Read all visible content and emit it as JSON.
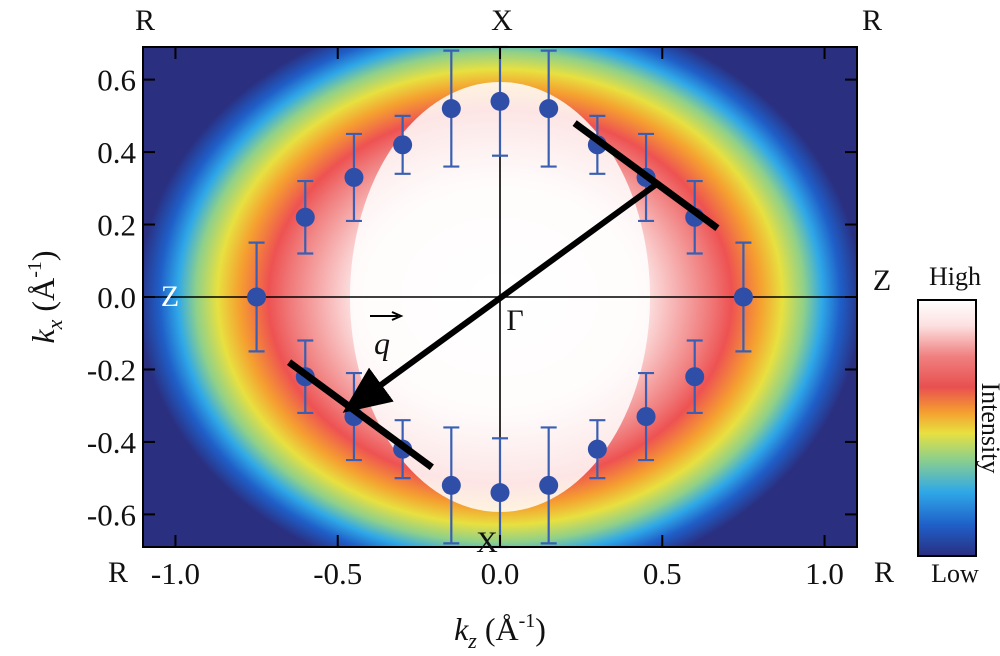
{
  "chart_data": {
    "type": "heatmap",
    "xlabel": {
      "main": "k",
      "sub": "z",
      "unit": " (Å",
      "sup": "-1",
      "close": ")"
    },
    "ylabel": {
      "main": "k",
      "sub": "x",
      "unit": " (Å",
      "sup": "-1",
      "close": ")"
    },
    "xlim": [
      -1.1,
      1.1
    ],
    "ylim": [
      -0.69,
      0.69
    ],
    "x_ticks": [
      -1.0,
      -0.5,
      0.0,
      0.5,
      1.0
    ],
    "x_tick_labels": [
      "-1.0",
      "-0.5",
      "0.0",
      "0.5",
      "1.0"
    ],
    "y_ticks": [
      -0.6,
      -0.4,
      -0.2,
      0.0,
      0.2,
      0.4,
      0.6
    ],
    "y_tick_labels": [
      "-0.6",
      "-0.4",
      "-0.2",
      "0.0",
      "0.2",
      "0.4",
      "0.6"
    ],
    "symmetry_points": {
      "top_left": "R",
      "top_center": "X",
      "top_right": "R",
      "left_center": "Z",
      "right_center": "Z",
      "origin": "Γ",
      "bottom_left": "R",
      "bottom_center": "X",
      "bottom_right": "R"
    },
    "vector_label": "q",
    "colorbar": {
      "high": "High",
      "low": "Low",
      "title": "Intensity",
      "colors": [
        "#2a2f80",
        "#1f5fc8",
        "#2fa8e8",
        "#8fd08a",
        "#e8e040",
        "#f5a030",
        "#e85050",
        "#f08080",
        "#fde0e0",
        "#ffffff"
      ]
    },
    "series": [
      {
        "type": "scatter-errorbar",
        "points": [
          {
            "x": -0.75,
            "y": 0.0,
            "err": 0.15
          },
          {
            "x": -0.6,
            "y": 0.22,
            "err": 0.1
          },
          {
            "x": -0.45,
            "y": 0.33,
            "err": 0.12
          },
          {
            "x": -0.3,
            "y": 0.42,
            "err": 0.08
          },
          {
            "x": -0.15,
            "y": 0.52,
            "err": 0.16
          },
          {
            "x": 0.0,
            "y": 0.54,
            "err": 0.15
          },
          {
            "x": 0.15,
            "y": 0.52,
            "err": 0.16
          },
          {
            "x": 0.3,
            "y": 0.42,
            "err": 0.08
          },
          {
            "x": 0.45,
            "y": 0.33,
            "err": 0.12
          },
          {
            "x": 0.6,
            "y": 0.22,
            "err": 0.1
          },
          {
            "x": 0.75,
            "y": 0.0,
            "err": 0.15
          },
          {
            "x": -0.6,
            "y": -0.22,
            "err": 0.1
          },
          {
            "x": -0.45,
            "y": -0.33,
            "err": 0.12
          },
          {
            "x": -0.3,
            "y": -0.42,
            "err": 0.08
          },
          {
            "x": -0.15,
            "y": -0.52,
            "err": 0.16
          },
          {
            "x": 0.0,
            "y": -0.54,
            "err": 0.15
          },
          {
            "x": 0.15,
            "y": -0.52,
            "err": 0.16
          },
          {
            "x": 0.3,
            "y": -0.42,
            "err": 0.08
          },
          {
            "x": 0.45,
            "y": -0.33,
            "err": 0.12
          },
          {
            "x": 0.6,
            "y": -0.22,
            "err": 0.1
          }
        ]
      }
    ],
    "nesting_lines": [
      {
        "x1": 0.23,
        "y1": 0.48,
        "x2": 0.67,
        "y2": 0.19
      },
      {
        "x1": -0.65,
        "y1": -0.18,
        "x2": -0.21,
        "y2": -0.47
      }
    ],
    "vector": {
      "x1": 0.0,
      "y1": 0.0,
      "x2": -0.47,
      "y2": -0.31
    }
  }
}
